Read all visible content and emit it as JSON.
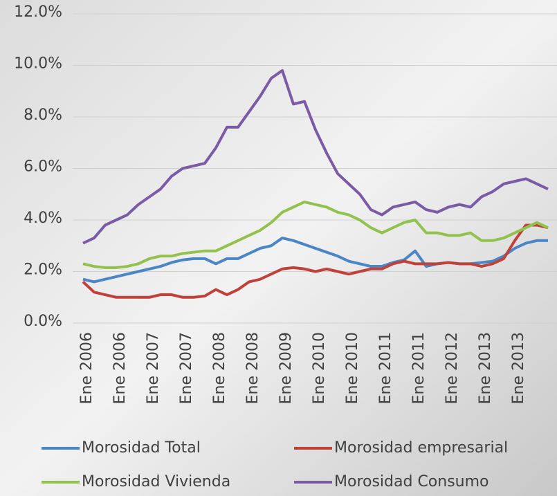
{
  "chart_data": {
    "type": "line",
    "categories": [
      "Ene 2006",
      null,
      null,
      "Ene 2006",
      null,
      null,
      "Ene 2007",
      null,
      null,
      "Ene 2007",
      null,
      null,
      "Ene 2008",
      null,
      null,
      "Ene 2008",
      null,
      null,
      "Ene 2009",
      null,
      null,
      "Ene 2010",
      null,
      null,
      "Ene 2010",
      null,
      null,
      "Ene 2011",
      null,
      null,
      "Ene 2011",
      null,
      null,
      "Ene 2012",
      null,
      null,
      "Ene 2013",
      null,
      null,
      "Ene 2013",
      null,
      null,
      null
    ],
    "series": [
      {
        "name": "Morosidad Total",
        "color": "#4a86c5",
        "values": [
          1.7,
          1.6,
          1.7,
          1.8,
          1.9,
          2.0,
          2.1,
          2.2,
          2.35,
          2.45,
          2.5,
          2.5,
          2.3,
          2.5,
          2.5,
          2.7,
          2.9,
          3.0,
          3.3,
          3.2,
          3.05,
          2.9,
          2.75,
          2.6,
          2.4,
          2.3,
          2.2,
          2.2,
          2.35,
          2.45,
          2.8,
          2.2,
          2.3,
          2.35,
          2.3,
          2.3,
          2.35,
          2.4,
          2.6,
          2.9,
          3.1,
          3.2,
          3.2
        ]
      },
      {
        "name": "Morosidad empresarial",
        "color": "#c0403a",
        "values": [
          1.6,
          1.2,
          1.1,
          1.0,
          1.0,
          1.0,
          1.0,
          1.1,
          1.1,
          1.0,
          1.0,
          1.05,
          1.3,
          1.1,
          1.3,
          1.6,
          1.7,
          1.9,
          2.1,
          2.15,
          2.1,
          2.0,
          2.1,
          2.0,
          1.9,
          2.0,
          2.1,
          2.1,
          2.3,
          2.4,
          2.3,
          2.3,
          2.3,
          2.35,
          2.3,
          2.3,
          2.2,
          2.3,
          2.5,
          3.2,
          3.8,
          3.8,
          3.7
        ]
      },
      {
        "name": "Morosidad Vivienda",
        "color": "#93c14e",
        "values": [
          2.3,
          2.2,
          2.15,
          2.15,
          2.2,
          2.3,
          2.5,
          2.6,
          2.6,
          2.7,
          2.75,
          2.8,
          2.8,
          3.0,
          3.2,
          3.4,
          3.6,
          3.9,
          4.3,
          4.5,
          4.7,
          4.6,
          4.5,
          4.3,
          4.2,
          4.0,
          3.7,
          3.5,
          3.7,
          3.9,
          4.0,
          3.5,
          3.5,
          3.4,
          3.4,
          3.5,
          3.2,
          3.2,
          3.3,
          3.5,
          3.7,
          3.9,
          3.7
        ]
      },
      {
        "name": "Morosidad Consumo",
        "color": "#7b5aa6",
        "values": [
          3.1,
          3.3,
          3.8,
          4.0,
          4.2,
          4.6,
          4.9,
          5.2,
          5.7,
          6.0,
          6.1,
          6.2,
          6.8,
          7.6,
          7.6,
          8.2,
          8.8,
          9.5,
          9.8,
          8.5,
          8.6,
          7.5,
          6.6,
          5.8,
          5.4,
          5.0,
          4.4,
          4.2,
          4.5,
          4.6,
          4.7,
          4.4,
          4.3,
          4.5,
          4.6,
          4.5,
          4.9,
          5.1,
          5.4,
          5.5,
          5.6,
          5.4,
          5.2
        ]
      }
    ],
    "ylim": [
      0,
      12
    ],
    "yticks": [
      {
        "value": 0,
        "label": "0.0%"
      },
      {
        "value": 2,
        "label": "2.0%"
      },
      {
        "value": 4,
        "label": "4.0%"
      },
      {
        "value": 6,
        "label": "6.0%"
      },
      {
        "value": 8,
        "label": "8.0%"
      },
      {
        "value": 10,
        "label": "10.0%"
      },
      {
        "value": 12,
        "label": "12.0%"
      }
    ],
    "grid": true
  }
}
